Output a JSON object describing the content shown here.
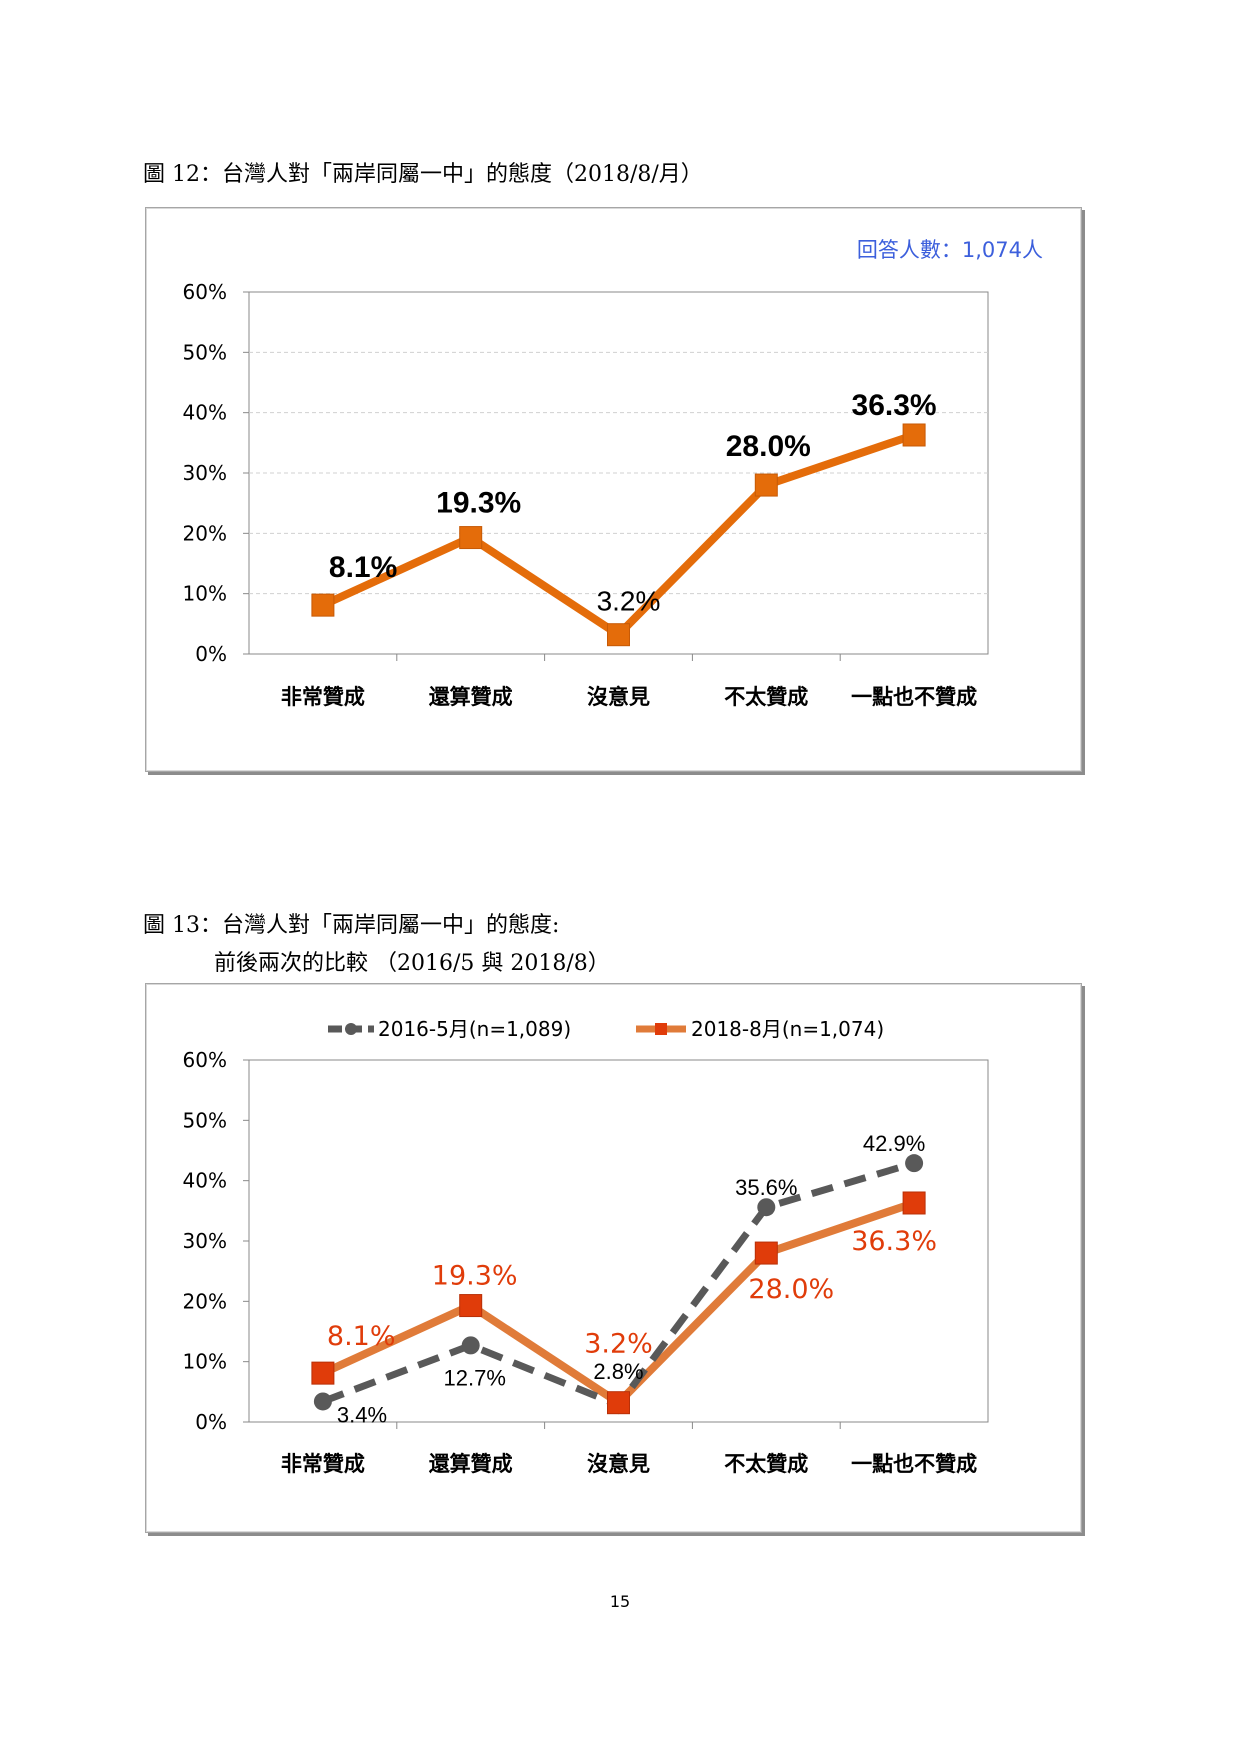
{
  "figures": [
    {
      "caption": "圖 12：台灣人對「兩岸同屬一中」的態度（2018/8/月）",
      "caption_line2": "",
      "respondents": "回答人數：1,074人"
    },
    {
      "caption": "圖 13：台灣人對「兩岸同屬一中」的態度:",
      "caption_line2": "前後兩次的比較 （2016/5 與 2018/8）",
      "respondents": ""
    }
  ],
  "chart_data": [
    {
      "type": "line",
      "title": "",
      "categories": [
        "非常贊成",
        "還算贊成",
        "沒意見",
        "不太贊成",
        "一點也不贊成"
      ],
      "y_ticks": [
        "0%",
        "10%",
        "20%",
        "30%",
        "40%",
        "50%",
        "60%"
      ],
      "ylim": [
        0,
        60
      ],
      "grid": true,
      "legend": "none",
      "series": [
        {
          "name": "",
          "values": [
            8.1,
            19.3,
            3.2,
            28.0,
            36.3
          ],
          "labels": [
            "8.1%",
            "19.3%",
            "3.2%",
            "28.0%",
            "36.3%"
          ],
          "color": "#e46c0a",
          "marker": "square"
        }
      ]
    },
    {
      "type": "line",
      "title": "",
      "categories": [
        "非常贊成",
        "還算贊成",
        "沒意見",
        "不太贊成",
        "一點也不贊成"
      ],
      "y_ticks": [
        "0%",
        "10%",
        "20%",
        "30%",
        "40%",
        "50%",
        "60%"
      ],
      "ylim": [
        0,
        60
      ],
      "grid": false,
      "legend": "top",
      "series": [
        {
          "name": "2016-5月(n=1,089)",
          "values": [
            3.4,
            12.7,
            2.8,
            35.6,
            42.9
          ],
          "labels": [
            "3.4%",
            "12.7%",
            "2.8%",
            "35.6%",
            "42.9%"
          ],
          "color": "#595959",
          "dashed": true,
          "marker": "circle"
        },
        {
          "name": "2018-8月(n=1,074)",
          "values": [
            8.1,
            19.3,
            3.2,
            28.0,
            36.3
          ],
          "labels": [
            "8.1%",
            "19.3%",
            "3.2%",
            "28.0%",
            "36.3%"
          ],
          "color": "#e07b39",
          "marker_color": "#e03c0a",
          "label_color": "#e03c0a",
          "marker": "square"
        }
      ]
    }
  ],
  "page_number": "15"
}
